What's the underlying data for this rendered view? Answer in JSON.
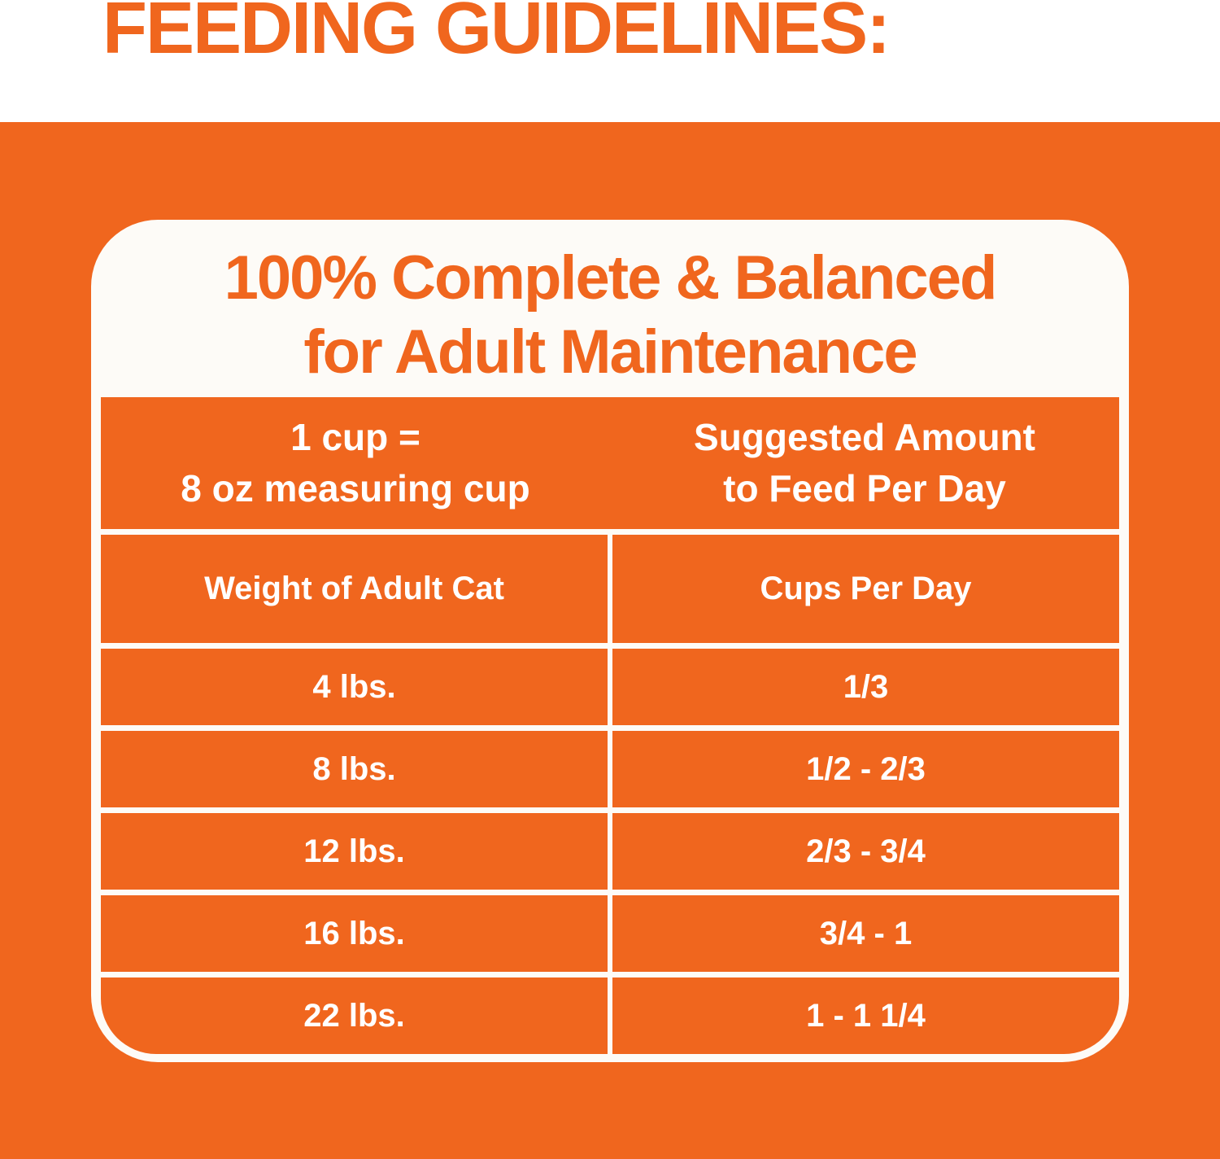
{
  "colors": {
    "orange": "#F0661E",
    "card_white": "#FDFBF7",
    "text_on_orange": "#FFFFFF"
  },
  "title": "FEEDING GUIDELINES:",
  "card": {
    "heading": "100% Complete & Balanced\nfor Adult Maintenance",
    "table": {
      "header": {
        "left": "1 cup =\n8 oz measuring cup",
        "right": "Suggested Amount\nto Feed Per Day"
      },
      "columns": {
        "weight": "Weight of Adult Cat",
        "cups": "Cups Per Day"
      },
      "rows": [
        {
          "weight": "4 lbs.",
          "cups": "1/3"
        },
        {
          "weight": "8 lbs.",
          "cups": "1/2 - 2/3"
        },
        {
          "weight": "12 lbs.",
          "cups": "2/3 - 3/4"
        },
        {
          "weight": "16 lbs.",
          "cups": "3/4 - 1"
        },
        {
          "weight": "22 lbs.",
          "cups": "1 - 1 1/4"
        }
      ]
    }
  }
}
